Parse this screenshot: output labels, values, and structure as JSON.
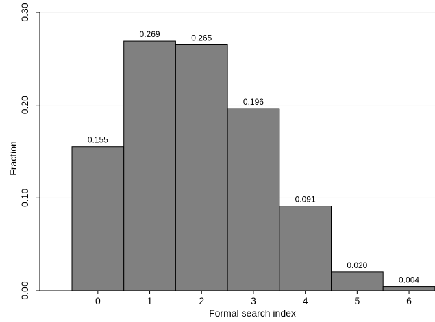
{
  "chart_data": {
    "type": "bar",
    "xlabel": "Formal search index",
    "ylabel": "Fraction",
    "categories": [
      "0",
      "1",
      "2",
      "3",
      "4",
      "5",
      "6"
    ],
    "values": [
      0.155,
      0.269,
      0.265,
      0.196,
      0.091,
      0.02,
      0.004
    ],
    "value_labels": [
      "0.155",
      "0.269",
      "0.265",
      "0.196",
      "0.091",
      "0.020",
      "0.004"
    ],
    "ylim": [
      0,
      0.3
    ],
    "yticks": [
      0.0,
      0.1,
      0.2,
      0.3
    ],
    "ytick_labels": [
      "0.00",
      "0.10",
      "0.20",
      "0.30"
    ],
    "grid": true,
    "colors": {
      "bar": "#808080",
      "bar_edge": "#000000",
      "grid": "#e8e8e8",
      "axis": "#000000"
    }
  }
}
